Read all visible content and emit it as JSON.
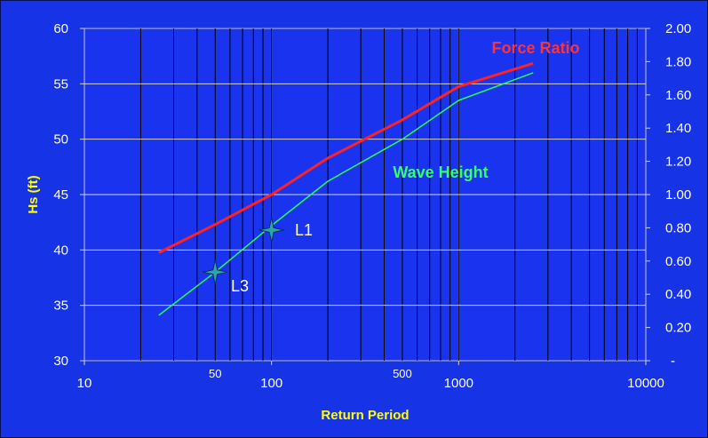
{
  "chart_data": {
    "type": "line",
    "xlabel": "Return Period",
    "ylabel": "Hs (ft)",
    "x_scale": "log",
    "xlim": [
      10,
      10000
    ],
    "ylim": [
      30,
      60
    ],
    "y2lim": [
      0,
      2.0
    ],
    "x_major_ticks": [
      "10",
      "100",
      "1000",
      "10000"
    ],
    "x_minor_labels": [
      "50",
      "500"
    ],
    "y_ticks": [
      "30",
      "35",
      "40",
      "45",
      "50",
      "55",
      "60"
    ],
    "y2_ticks": [
      "-",
      "0.20",
      "0.40",
      "0.60",
      "0.80",
      "1.00",
      "1.20",
      "1.40",
      "1.60",
      "1.80",
      "2.00"
    ],
    "grid": true,
    "series": [
      {
        "name": "Force Ratio",
        "axis": "right",
        "color": "#ff2222",
        "points": [
          [
            25,
            0.65
          ],
          [
            50,
            0.82
          ],
          [
            100,
            1.0
          ],
          [
            200,
            1.22
          ],
          [
            500,
            1.45
          ],
          [
            1000,
            1.65
          ],
          [
            2500,
            1.79
          ]
        ]
      },
      {
        "name": "Wave Height",
        "axis": "left",
        "color": "#22ff55",
        "points": [
          [
            25,
            34.1
          ],
          [
            50,
            38
          ],
          [
            100,
            42.2
          ],
          [
            200,
            46.2
          ],
          [
            500,
            50
          ],
          [
            1000,
            53.5
          ],
          [
            2500,
            56
          ]
        ]
      }
    ],
    "annotations": [
      {
        "text": "Force Ratio",
        "style": "red"
      },
      {
        "text": "Wave Height",
        "style": "green"
      },
      {
        "text": "L1",
        "style": "white"
      },
      {
        "text": "L3",
        "style": "white"
      }
    ],
    "markers": [
      {
        "label": "L1",
        "x": 100,
        "y": 41.8
      },
      {
        "label": "L3",
        "x": 50,
        "y": 38
      }
    ]
  }
}
